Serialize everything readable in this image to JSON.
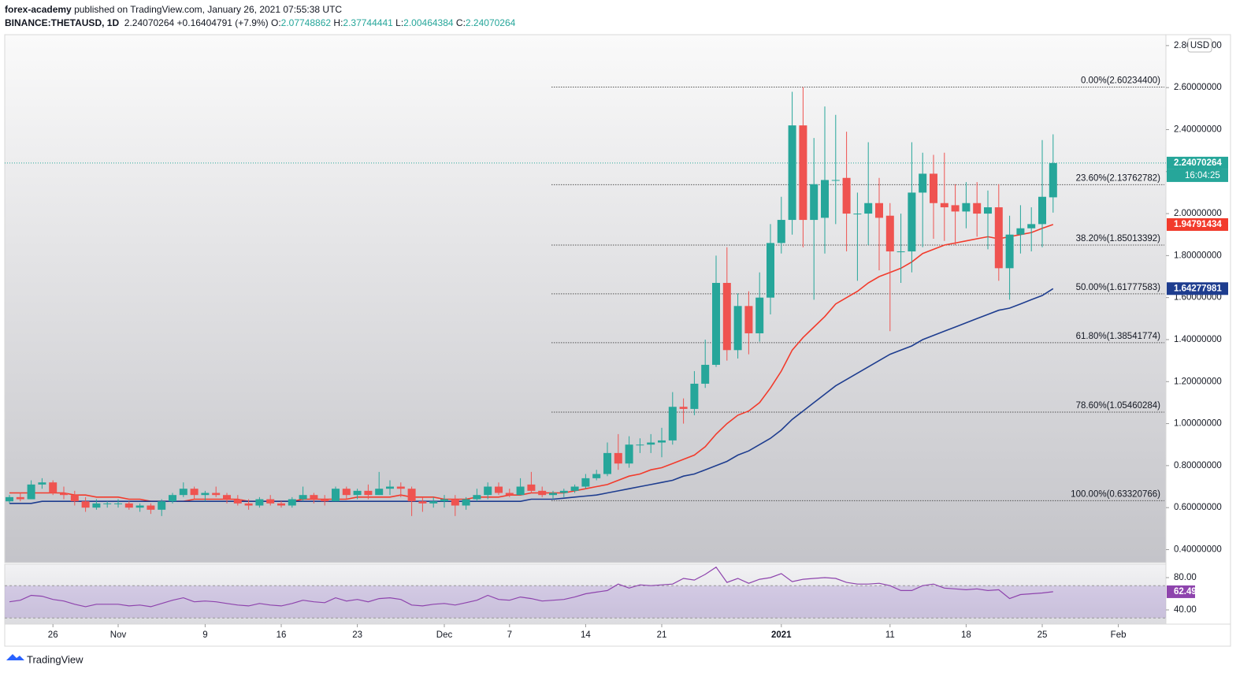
{
  "chart_data": {
    "type": "candlestick",
    "author": "forex-academy",
    "published": "published on TradingView.com, January 26, 2021 07:55:38 UTC",
    "symbol": "BINANCE:THETAUSD, 1D",
    "change_text": "+0.16404791 (+7.9%)",
    "ohlc_labels": [
      "O:",
      "H:",
      "L:",
      "C:"
    ],
    "currency": "USD",
    "countdown": "16:04:25",
    "brand": "TradingView",
    "up_color": "#26a69a",
    "down_color": "#ef5350",
    "x": [
      "2020-10-22",
      "2020-10-23",
      "2020-10-24",
      "2020-10-25",
      "2020-10-26",
      "2020-10-27",
      "2020-10-28",
      "2020-10-29",
      "2020-10-30",
      "2020-10-31",
      "2020-11-01",
      "2020-11-02",
      "2020-11-03",
      "2020-11-04",
      "2020-11-05",
      "2020-11-06",
      "2020-11-07",
      "2020-11-08",
      "2020-11-09",
      "2020-11-10",
      "2020-11-11",
      "2020-11-12",
      "2020-11-13",
      "2020-11-14",
      "2020-11-15",
      "2020-11-16",
      "2020-11-17",
      "2020-11-18",
      "2020-11-19",
      "2020-11-20",
      "2020-11-21",
      "2020-11-22",
      "2020-11-23",
      "2020-11-24",
      "2020-11-25",
      "2020-11-26",
      "2020-11-27",
      "2020-11-28",
      "2020-11-29",
      "2020-11-30",
      "2020-12-01",
      "2020-12-02",
      "2020-12-03",
      "2020-12-04",
      "2020-12-05",
      "2020-12-06",
      "2020-12-07",
      "2020-12-08",
      "2020-12-09",
      "2020-12-10",
      "2020-12-11",
      "2020-12-12",
      "2020-12-13",
      "2020-12-14",
      "2020-12-15",
      "2020-12-16",
      "2020-12-17",
      "2020-12-18",
      "2020-12-19",
      "2020-12-20",
      "2020-12-21",
      "2020-12-22",
      "2020-12-23",
      "2020-12-24",
      "2020-12-25",
      "2020-12-26",
      "2020-12-27",
      "2020-12-28",
      "2020-12-29",
      "2020-12-30",
      "2020-12-31",
      "2021-01-01",
      "2021-01-02",
      "2021-01-03",
      "2021-01-04",
      "2021-01-05",
      "2021-01-06",
      "2021-01-07",
      "2021-01-08",
      "2021-01-09",
      "2021-01-10",
      "2021-01-11",
      "2021-01-12",
      "2021-01-13",
      "2021-01-14",
      "2021-01-15",
      "2021-01-16",
      "2021-01-17",
      "2021-01-18",
      "2021-01-19",
      "2021-01-20",
      "2021-01-21",
      "2021-01-22",
      "2021-01-23",
      "2021-01-24",
      "2021-01-25",
      "2021-01-26"
    ],
    "open": [
      0.63,
      0.65,
      0.64,
      0.71,
      0.72,
      0.67,
      0.66,
      0.63,
      0.6,
      0.62,
      0.62,
      0.62,
      0.6,
      0.61,
      0.59,
      0.63,
      0.66,
      0.69,
      0.66,
      0.67,
      0.66,
      0.64,
      0.62,
      0.61,
      0.64,
      0.62,
      0.61,
      0.64,
      0.66,
      0.64,
      0.63,
      0.69,
      0.66,
      0.68,
      0.66,
      0.69,
      0.7,
      0.69,
      0.63,
      0.62,
      0.63,
      0.64,
      0.61,
      0.64,
      0.66,
      0.7,
      0.67,
      0.66,
      0.71,
      0.68,
      0.66,
      0.67,
      0.68,
      0.7,
      0.74,
      0.76,
      0.86,
      0.81,
      0.9,
      0.9,
      0.91,
      0.92,
      1.08,
      1.07,
      1.19,
      1.28,
      1.67,
      1.35,
      1.56,
      1.43,
      1.6,
      1.86,
      1.97,
      2.42,
      1.97,
      1.98,
      2.16,
      2.17,
      2.0,
      2.0,
      2.05,
      1.99,
      1.82,
      1.82,
      2.1,
      2.19,
      2.05,
      2.04,
      2.01,
      2.05,
      2.0,
      2.03,
      1.74,
      1.9,
      1.93,
      1.95,
      2.07748862
    ],
    "high": [
      0.66,
      0.67,
      0.73,
      0.74,
      0.73,
      0.7,
      0.68,
      0.65,
      0.64,
      0.63,
      0.64,
      0.63,
      0.62,
      0.62,
      0.64,
      0.67,
      0.72,
      0.7,
      0.68,
      0.7,
      0.67,
      0.66,
      0.64,
      0.65,
      0.66,
      0.63,
      0.65,
      0.7,
      0.67,
      0.66,
      0.7,
      0.7,
      0.69,
      0.71,
      0.77,
      0.73,
      0.72,
      0.7,
      0.65,
      0.65,
      0.66,
      0.66,
      0.65,
      0.69,
      0.72,
      0.72,
      0.69,
      0.74,
      0.77,
      0.7,
      0.68,
      0.69,
      0.71,
      0.76,
      0.78,
      0.91,
      0.95,
      0.94,
      0.93,
      0.95,
      0.98,
      1.15,
      1.12,
      1.25,
      1.4,
      1.8,
      1.84,
      1.62,
      1.63,
      1.72,
      1.95,
      2.08,
      2.58,
      2.602344,
      2.36,
      2.51,
      2.47,
      2.39,
      2.1,
      2.34,
      2.17,
      2.05,
      2.0,
      2.34,
      2.29,
      2.28,
      2.29,
      2.14,
      2.15,
      2.15,
      2.11,
      2.14,
      1.99,
      2.04,
      2.03,
      2.35,
      2.37744441
    ],
    "low": [
      0.62,
      0.63,
      0.64,
      0.69,
      0.66,
      0.64,
      0.61,
      0.58,
      0.59,
      0.6,
      0.6,
      0.59,
      0.58,
      0.57,
      0.56,
      0.62,
      0.65,
      0.64,
      0.63,
      0.65,
      0.62,
      0.61,
      0.59,
      0.6,
      0.61,
      0.6,
      0.6,
      0.63,
      0.62,
      0.61,
      0.63,
      0.64,
      0.64,
      0.64,
      0.66,
      0.66,
      0.65,
      0.56,
      0.58,
      0.6,
      0.6,
      0.56,
      0.59,
      0.63,
      0.64,
      0.66,
      0.65,
      0.66,
      0.67,
      0.65,
      0.64,
      0.65,
      0.67,
      0.69,
      0.73,
      0.75,
      0.78,
      0.79,
      0.86,
      0.86,
      0.84,
      0.9,
      1.0,
      1.04,
      1.17,
      1.27,
      1.3,
      1.31,
      1.33,
      1.39,
      1.52,
      1.81,
      1.9,
      1.84,
      1.59,
      1.81,
      1.95,
      1.82,
      1.68,
      1.85,
      1.73,
      1.44,
      1.67,
      1.72,
      1.84,
      1.88,
      1.87,
      1.85,
      1.93,
      1.89,
      1.83,
      1.68,
      1.59,
      1.81,
      1.82,
      1.84,
      2.00464384
    ],
    "close": [
      0.65,
      0.64,
      0.71,
      0.72,
      0.67,
      0.66,
      0.63,
      0.6,
      0.62,
      0.62,
      0.62,
      0.6,
      0.61,
      0.59,
      0.63,
      0.66,
      0.69,
      0.66,
      0.67,
      0.66,
      0.64,
      0.62,
      0.61,
      0.64,
      0.62,
      0.61,
      0.64,
      0.66,
      0.64,
      0.63,
      0.69,
      0.66,
      0.68,
      0.66,
      0.69,
      0.7,
      0.69,
      0.63,
      0.62,
      0.63,
      0.64,
      0.61,
      0.64,
      0.66,
      0.7,
      0.67,
      0.66,
      0.7,
      0.68,
      0.66,
      0.67,
      0.68,
      0.7,
      0.74,
      0.76,
      0.86,
      0.81,
      0.9,
      0.9,
      0.91,
      0.92,
      1.08,
      1.07,
      1.19,
      1.28,
      1.67,
      1.35,
      1.56,
      1.43,
      1.6,
      1.86,
      1.97,
      2.42,
      1.97,
      2.14,
      2.16,
      2.16,
      2.0,
      2.0,
      2.05,
      1.98,
      1.82,
      1.82,
      2.1,
      2.19,
      2.05,
      2.03,
      2.01,
      2.05,
      2.0,
      2.03,
      1.74,
      1.9,
      1.93,
      1.95,
      2.08,
      2.24070264
    ],
    "overlays": [
      {
        "color": "#f23b2c",
        "values": [
          0.67,
          0.67,
          0.67,
          0.67,
          0.67,
          0.67,
          0.66,
          0.66,
          0.65,
          0.65,
          0.65,
          0.64,
          0.64,
          0.63,
          0.63,
          0.63,
          0.63,
          0.64,
          0.64,
          0.64,
          0.64,
          0.64,
          0.63,
          0.63,
          0.63,
          0.63,
          0.63,
          0.64,
          0.64,
          0.64,
          0.64,
          0.64,
          0.65,
          0.65,
          0.65,
          0.65,
          0.66,
          0.65,
          0.65,
          0.65,
          0.64,
          0.64,
          0.64,
          0.65,
          0.65,
          0.65,
          0.66,
          0.66,
          0.67,
          0.67,
          0.67,
          0.67,
          0.68,
          0.69,
          0.7,
          0.71,
          0.73,
          0.75,
          0.76,
          0.78,
          0.79,
          0.81,
          0.83,
          0.85,
          0.89,
          0.95,
          1.0,
          1.04,
          1.06,
          1.1,
          1.17,
          1.25,
          1.35,
          1.41,
          1.46,
          1.51,
          1.57,
          1.6,
          1.63,
          1.67,
          1.7,
          1.72,
          1.74,
          1.77,
          1.81,
          1.83,
          1.85,
          1.86,
          1.87,
          1.88,
          1.89,
          1.88,
          1.89,
          1.9,
          1.91,
          1.93,
          1.94791434
        ]
      },
      {
        "color": "#1e3d8f",
        "values": [
          0.62,
          0.62,
          0.62,
          0.63,
          0.63,
          0.63,
          0.63,
          0.63,
          0.63,
          0.63,
          0.63,
          0.63,
          0.63,
          0.63,
          0.63,
          0.63,
          0.63,
          0.63,
          0.63,
          0.63,
          0.63,
          0.63,
          0.63,
          0.63,
          0.63,
          0.63,
          0.63,
          0.63,
          0.63,
          0.63,
          0.63,
          0.63,
          0.63,
          0.63,
          0.63,
          0.63,
          0.63,
          0.63,
          0.63,
          0.63,
          0.63,
          0.63,
          0.63,
          0.63,
          0.63,
          0.63,
          0.63,
          0.63,
          0.64,
          0.64,
          0.64,
          0.645,
          0.65,
          0.655,
          0.66,
          0.67,
          0.68,
          0.69,
          0.7,
          0.71,
          0.72,
          0.73,
          0.75,
          0.76,
          0.78,
          0.8,
          0.82,
          0.85,
          0.87,
          0.9,
          0.93,
          0.97,
          1.02,
          1.06,
          1.1,
          1.14,
          1.18,
          1.21,
          1.24,
          1.27,
          1.3,
          1.33,
          1.35,
          1.37,
          1.4,
          1.42,
          1.44,
          1.46,
          1.48,
          1.5,
          1.52,
          1.54,
          1.55,
          1.57,
          1.59,
          1.61,
          1.64277981
        ]
      }
    ],
    "ylim": [
      0.338,
      2.852
    ],
    "yticks": [
      {
        "value": 0.4,
        "label": "0.40000000"
      },
      {
        "value": 0.6,
        "label": "0.60000000"
      },
      {
        "value": 0.8,
        "label": "0.80000000"
      },
      {
        "value": 1.0,
        "label": "1.00000000"
      },
      {
        "value": 1.2,
        "label": "1.20000000"
      },
      {
        "value": 1.4,
        "label": "1.40000000"
      },
      {
        "value": 1.6,
        "label": "1.60000000"
      },
      {
        "value": 1.8,
        "label": "1.80000000"
      },
      {
        "value": 2.0,
        "label": "2.00000000"
      },
      {
        "value": 2.2,
        "label": "2.20000000"
      },
      {
        "value": 2.4,
        "label": "2.40000000"
      },
      {
        "value": 2.6,
        "label": "2.60000000"
      },
      {
        "value": 2.8,
        "label": "2.80000000"
      }
    ],
    "xticks": [
      {
        "value": "2020-10-26",
        "label": "26"
      },
      {
        "value": "2020-11-01",
        "label": "Nov"
      },
      {
        "value": "2020-11-09",
        "label": "9"
      },
      {
        "value": "2020-11-16",
        "label": "16"
      },
      {
        "value": "2020-11-23",
        "label": "23"
      },
      {
        "value": "2020-12-01",
        "label": "Dec"
      },
      {
        "value": "2020-12-07",
        "label": "7"
      },
      {
        "value": "2020-12-14",
        "label": "14"
      },
      {
        "value": "2020-12-21",
        "label": "21"
      },
      {
        "value": "2021-01-01",
        "label": "2021"
      },
      {
        "value": "2021-01-11",
        "label": "11"
      },
      {
        "value": "2021-01-18",
        "label": "18"
      },
      {
        "value": "2021-01-25",
        "label": "25"
      },
      {
        "value": "2021-02-01",
        "label": "Feb"
      }
    ],
    "fib_start": "2020-12-11",
    "fib_levels": [
      {
        "value": 2.602344,
        "label": "0.00%(2.60234400)"
      },
      {
        "value": 2.13762782,
        "label": "23.60%(2.13762782)"
      },
      {
        "value": 1.85013392,
        "label": "38.20%(1.85013392)"
      },
      {
        "value": 1.61777583,
        "label": "50.00%(1.61777583)"
      },
      {
        "value": 1.38541774,
        "label": "61.80%(1.38541774)"
      },
      {
        "value": 1.05460284,
        "label": "78.60%(1.05460284)"
      },
      {
        "value": 0.63320766,
        "label": "100.00%(0.63320766)"
      }
    ],
    "rsi": {
      "color": "#8e44ad",
      "band": [
        30,
        70
      ],
      "ylim": [
        22.4,
        96.6
      ],
      "yticks": [
        {
          "value": 80,
          "label": "80.00"
        },
        {
          "value": 40,
          "label": "40.00"
        }
      ],
      "values": [
        50,
        52,
        58,
        57,
        53,
        51,
        47,
        44,
        47,
        47,
        47,
        45,
        46,
        44,
        48,
        52,
        55,
        50,
        51,
        50,
        48,
        46,
        45,
        48,
        46,
        45,
        48,
        52,
        50,
        49,
        55,
        51,
        53,
        50,
        54,
        55,
        53,
        46,
        45,
        47,
        48,
        46,
        49,
        52,
        58,
        53,
        52,
        56,
        54,
        51,
        52,
        53,
        56,
        60,
        62,
        64,
        72,
        67,
        71,
        70,
        71,
        72,
        79,
        77,
        84,
        93,
        74,
        79,
        73,
        78,
        80,
        85,
        75,
        78,
        79,
        80,
        79,
        74,
        72,
        72,
        73,
        70,
        64,
        64,
        70,
        72,
        67,
        66,
        65,
        66,
        64,
        65,
        54,
        59,
        60,
        61,
        62.49
      ]
    }
  }
}
